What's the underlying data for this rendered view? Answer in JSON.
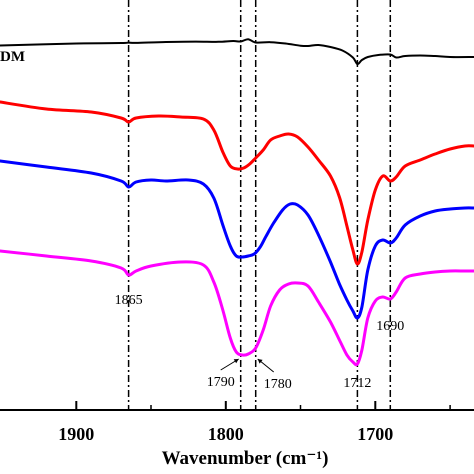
{
  "chart_data": {
    "type": "line",
    "xlabel": "Wavenumber (cm⁻¹)",
    "ylabel": "",
    "xlim": [
      1951,
      1634
    ],
    "x_reversed": true,
    "x_ticks": [
      1900,
      1800,
      1700
    ],
    "x_tick_labels": [
      "1900",
      "1800",
      "1700"
    ],
    "grid": false,
    "series": [
      {
        "name": "DM",
        "color": "#000000",
        "points": [
          [
            1951,
            45.5
          ],
          [
            1900,
            43.5
          ],
          [
            1870,
            43.0
          ],
          [
            1865,
            42.6
          ],
          [
            1860,
            42.9
          ],
          [
            1840,
            42.0
          ],
          [
            1820,
            41.6
          ],
          [
            1805,
            41.8
          ],
          [
            1795,
            41.0
          ],
          [
            1790,
            41.5
          ],
          [
            1785,
            39.2
          ],
          [
            1780,
            42.5
          ],
          [
            1770,
            42.2
          ],
          [
            1760,
            43.5
          ],
          [
            1750,
            45.7
          ],
          [
            1745,
            46.0
          ],
          [
            1738,
            45.0
          ],
          [
            1730,
            47.0
          ],
          [
            1722,
            50.5
          ],
          [
            1715,
            57.5
          ],
          [
            1712,
            64.0
          ],
          [
            1709,
            60.0
          ],
          [
            1705,
            57.0
          ],
          [
            1698,
            55.0
          ],
          [
            1690,
            54.5
          ],
          [
            1686,
            57.5
          ],
          [
            1680,
            56.0
          ],
          [
            1670,
            55.5
          ],
          [
            1660,
            56.0
          ],
          [
            1650,
            57.0
          ],
          [
            1634,
            57.0
          ]
        ]
      },
      {
        "name": "",
        "color": "#ff0000",
        "points": [
          [
            1951,
            102
          ],
          [
            1920,
            109
          ],
          [
            1890,
            112
          ],
          [
            1870,
            118
          ],
          [
            1865,
            122
          ],
          [
            1860,
            118
          ],
          [
            1845,
            116
          ],
          [
            1830,
            117
          ],
          [
            1815,
            119
          ],
          [
            1808,
            130
          ],
          [
            1802,
            152
          ],
          [
            1797,
            166
          ],
          [
            1792,
            169
          ],
          [
            1788,
            168
          ],
          [
            1784,
            164
          ],
          [
            1780,
            158
          ],
          [
            1775,
            150
          ],
          [
            1770,
            140
          ],
          [
            1764,
            136
          ],
          [
            1758,
            134
          ],
          [
            1752,
            137
          ],
          [
            1745,
            147
          ],
          [
            1738,
            160
          ],
          [
            1730,
            176
          ],
          [
            1724,
            197
          ],
          [
            1719,
            226
          ],
          [
            1715,
            250
          ],
          [
            1712,
            264
          ],
          [
            1709,
            252
          ],
          [
            1705,
            220
          ],
          [
            1700,
            190
          ],
          [
            1695,
            176
          ],
          [
            1690,
            181
          ],
          [
            1686,
            177
          ],
          [
            1680,
            166
          ],
          [
            1670,
            160
          ],
          [
            1660,
            154
          ],
          [
            1650,
            149
          ],
          [
            1640,
            146
          ],
          [
            1634,
            146
          ]
        ]
      },
      {
        "name": "",
        "color": "#0000ff",
        "points": [
          [
            1951,
            161
          ],
          [
            1920,
            167
          ],
          [
            1890,
            173
          ],
          [
            1870,
            181
          ],
          [
            1865,
            187
          ],
          [
            1860,
            182
          ],
          [
            1850,
            180
          ],
          [
            1840,
            181
          ],
          [
            1825,
            180
          ],
          [
            1815,
            184
          ],
          [
            1808,
            198
          ],
          [
            1802,
            225
          ],
          [
            1797,
            246
          ],
          [
            1793,
            256
          ],
          [
            1789,
            257
          ],
          [
            1785,
            256
          ],
          [
            1781,
            254
          ],
          [
            1777,
            247
          ],
          [
            1773,
            236
          ],
          [
            1768,
            223
          ],
          [
            1762,
            210
          ],
          [
            1757,
            204
          ],
          [
            1752,
            205
          ],
          [
            1745,
            215
          ],
          [
            1738,
            235
          ],
          [
            1730,
            262
          ],
          [
            1724,
            284
          ],
          [
            1719,
            300
          ],
          [
            1715,
            311
          ],
          [
            1712,
            318
          ],
          [
            1709,
            307
          ],
          [
            1705,
            270
          ],
          [
            1700,
            246
          ],
          [
            1695,
            240
          ],
          [
            1690,
            243
          ],
          [
            1686,
            238
          ],
          [
            1680,
            225
          ],
          [
            1670,
            216
          ],
          [
            1660,
            211
          ],
          [
            1650,
            209
          ],
          [
            1640,
            208
          ],
          [
            1634,
            208
          ]
        ]
      },
      {
        "name": "",
        "color": "#ff00ff",
        "points": [
          [
            1951,
            251
          ],
          [
            1920,
            256
          ],
          [
            1890,
            261
          ],
          [
            1870,
            268
          ],
          [
            1865,
            275
          ],
          [
            1860,
            271
          ],
          [
            1850,
            266
          ],
          [
            1830,
            262
          ],
          [
            1815,
            265
          ],
          [
            1808,
            282
          ],
          [
            1802,
            310
          ],
          [
            1797,
            338
          ],
          [
            1793,
            352
          ],
          [
            1789,
            355
          ],
          [
            1785,
            354
          ],
          [
            1780,
            348
          ],
          [
            1775,
            330
          ],
          [
            1770,
            306
          ],
          [
            1764,
            290
          ],
          [
            1758,
            284
          ],
          [
            1752,
            283
          ],
          [
            1745,
            286
          ],
          [
            1738,
            302
          ],
          [
            1730,
            322
          ],
          [
            1724,
            340
          ],
          [
            1719,
            355
          ],
          [
            1715,
            362
          ],
          [
            1712,
            364
          ],
          [
            1709,
            350
          ],
          [
            1705,
            318
          ],
          [
            1700,
            301
          ],
          [
            1695,
            297
          ],
          [
            1690,
            299
          ],
          [
            1686,
            292
          ],
          [
            1680,
            278
          ],
          [
            1670,
            274
          ],
          [
            1660,
            272
          ],
          [
            1650,
            271
          ],
          [
            1640,
            271
          ],
          [
            1634,
            271
          ]
        ]
      }
    ],
    "reference_lines": [
      1865,
      1790,
      1780,
      1712,
      1690
    ],
    "annotations": [
      {
        "text": "1865",
        "x": 1865
      },
      {
        "text": "1790",
        "x": 1790
      },
      {
        "text": "1780",
        "x": 1780
      },
      {
        "text": "1712",
        "x": 1712
      },
      {
        "text": "1690",
        "x": 1690
      }
    ]
  }
}
